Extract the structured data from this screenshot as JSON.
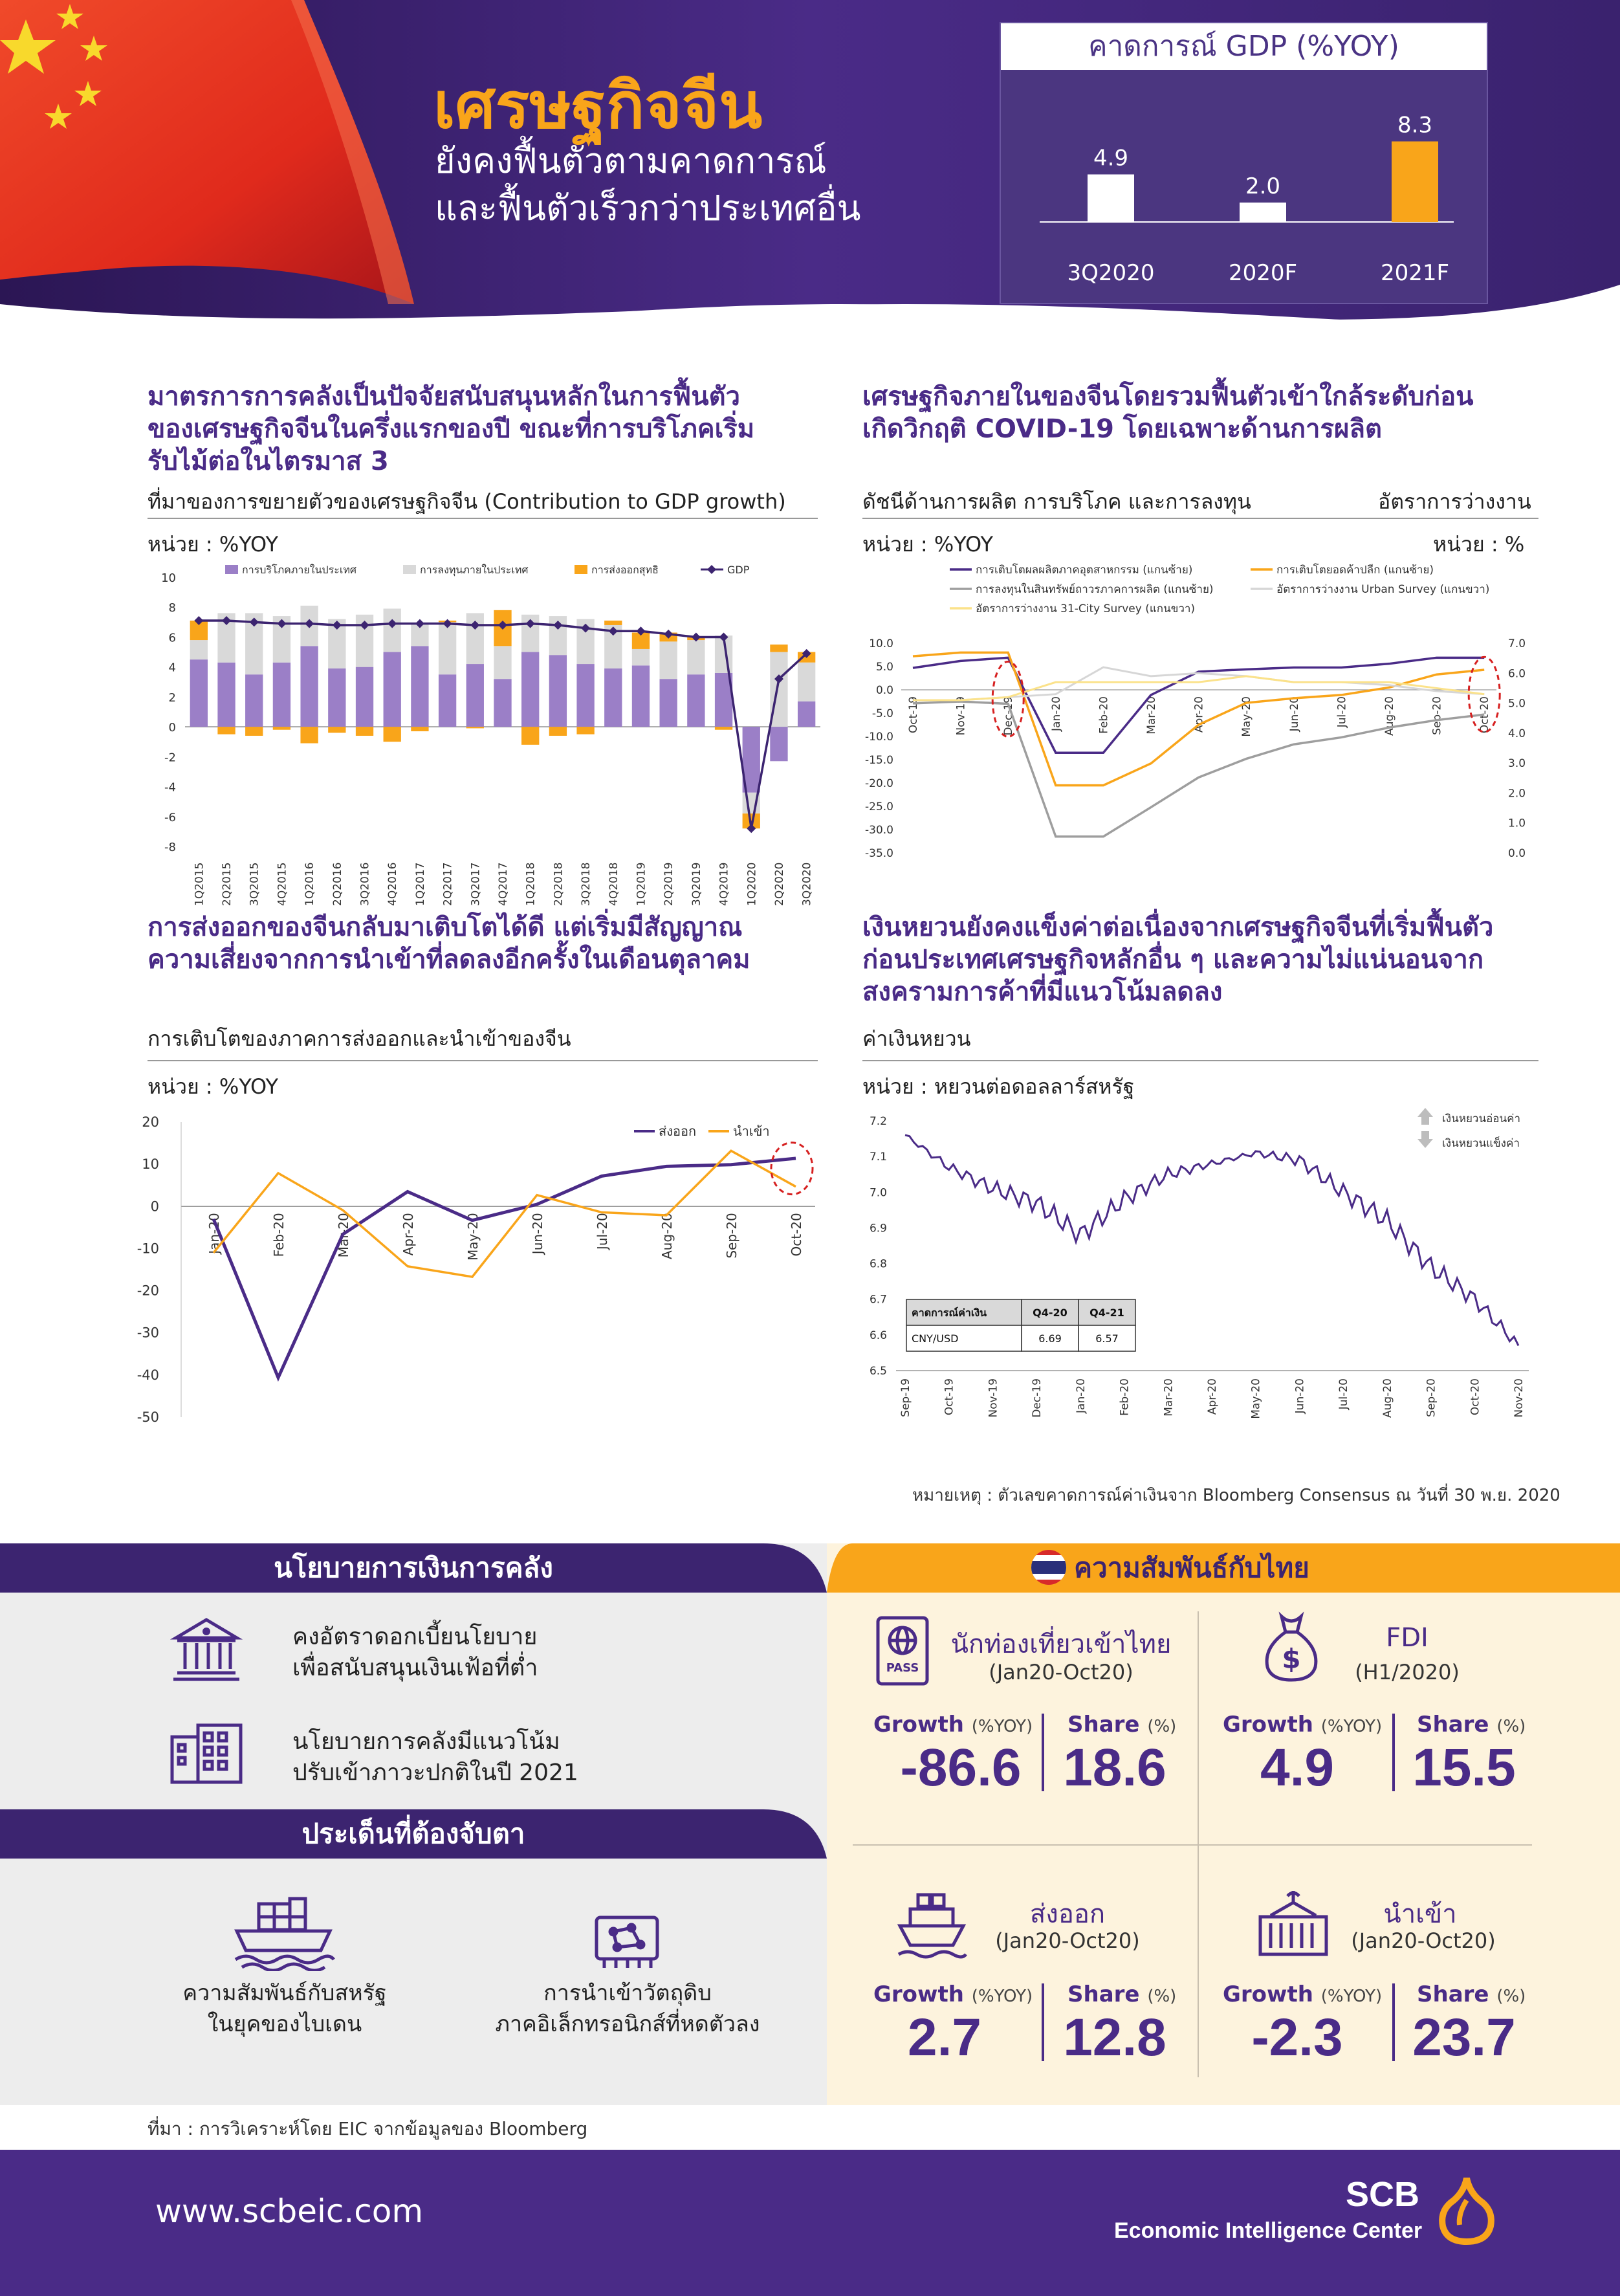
{
  "header": {
    "title": "เศรษฐกิจจีน",
    "subtitle_1": "ยังคงฟื้นตัวตามคาดการณ์",
    "subtitle_2": "และฟื้นตัวเร็วกว่าประเทศอื่น",
    "gdp_box_title": "คาดการณ์ GDP (%YOY)"
  },
  "colors": {
    "purple": "#4a2b87",
    "orange": "#f9a51a",
    "light_gray": "#d9d9d9",
    "lavender": "#9b7fc7",
    "deep_purple": "#3c2470",
    "band_bg": "#ededed",
    "cream": "#fdf3dd"
  },
  "section1": {
    "title_1": "มาตรการการคลังเป็นปัจจัยสนับสนุนหลักในการฟื้นตัว",
    "title_2": "ของเศรษฐกิจจีนในครึ่งแรกของปี ขณะที่การบริโภคเริ่ม",
    "title_3": "รับไม้ต่อในไตรมาส 3",
    "caption": "ที่มาของการขยายตัวของเศรษฐกิจจีน (Contribution to GDP growth)",
    "unit": "หน่วย : %YOY"
  },
  "section2": {
    "title_1": "เศรษฐกิจภายในของจีนโดยรวมฟื้นตัวเข้าใกล้ระดับก่อน",
    "title_2": "เกิดวิกฤติ COVID-19 โดยเฉพาะด้านการผลิต",
    "caption_left": "ดัชนีด้านการผลิต การบริโภค และการลงทุน",
    "caption_right": "อัตราการว่างงาน",
    "unit_left": "หน่วย : %YOY",
    "unit_right": "หน่วย : %"
  },
  "section3": {
    "title_1": "การส่งออกของจีนกลับมาเติบโตได้ดี แต่เริ่มมีสัญญาณ",
    "title_2": "ความเสี่ยงจากการนำเข้าที่ลดลงอีกครั้งในเดือนตุลาคม",
    "caption": "การเติบโตของภาคการส่งออกและนำเข้าของจีน",
    "unit": "หน่วย : %YOY"
  },
  "section4": {
    "title_1": "เงินหยวนยังคงแข็งค่าต่อเนื่องจากเศรษฐกิจจีนที่เริ่มฟื้นตัว",
    "title_2": "ก่อนประเทศเศรษฐกิจหลักอื่น ๆ และความไม่แน่นอนจาก",
    "title_3": "สงครามการค้าที่มีแนวโน้มลดลง",
    "caption": "ค่าเงินหยวน",
    "unit": "หน่วย : หยวนต่อดอลลาร์สหรัฐ",
    "note": "หมายเหตุ : ตัวเลขคาดการณ์ค่าเงินจาก Bloomberg Consensus ณ วันที่ 30 พ.ย. 2020"
  },
  "chart_data": [
    {
      "type": "bar",
      "categories": [
        "3Q2020",
        "2020F",
        "2021F"
      ],
      "values": [
        4.9,
        2.0,
        8.3
      ],
      "title": "คาดการณ์ GDP (%YOY)"
    },
    {
      "type": "bar",
      "categories": [
        "1Q2015",
        "2Q2015",
        "3Q2015",
        "4Q2015",
        "1Q2016",
        "2Q2016",
        "3Q2016",
        "4Q2016",
        "1Q2017",
        "2Q2017",
        "3Q2017",
        "4Q2017",
        "1Q2018",
        "2Q2018",
        "3Q2018",
        "4Q2018",
        "1Q2019",
        "2Q2019",
        "3Q2019",
        "4Q2019",
        "1Q2020",
        "2Q2020",
        "3Q2020"
      ],
      "series": [
        {
          "name": "การบริโภคภายในประเทศ",
          "values": [
            4.5,
            4.3,
            3.5,
            4.3,
            5.4,
            3.9,
            4.0,
            5.0,
            5.4,
            3.5,
            4.2,
            3.2,
            5.0,
            4.8,
            4.2,
            3.9,
            4.1,
            3.2,
            3.5,
            3.6,
            -4.4,
            -2.3,
            1.7
          ]
        },
        {
          "name": "การลงทุนภายในประเทศ",
          "values": [
            1.3,
            3.3,
            4.1,
            3.1,
            2.7,
            3.3,
            3.5,
            2.9,
            1.5,
            3.5,
            3.4,
            2.2,
            2.5,
            2.6,
            3.0,
            2.9,
            1.1,
            2.5,
            2.3,
            2.5,
            -1.4,
            5.0,
            2.6
          ]
        },
        {
          "name": "การส่งออกสุทธิ",
          "values": [
            1.3,
            -0.5,
            -0.6,
            -0.2,
            -1.1,
            -0.4,
            -0.6,
            -1.0,
            -0.3,
            0.1,
            -0.1,
            2.4,
            -1.2,
            -0.6,
            -0.5,
            0.3,
            1.1,
            0.6,
            0.2,
            -0.2,
            -1.0,
            0.5,
            0.7
          ]
        },
        {
          "name": "GDP",
          "values": [
            7.1,
            7.1,
            7.0,
            6.9,
            6.9,
            6.8,
            6.8,
            6.9,
            6.9,
            6.9,
            6.8,
            6.8,
            6.9,
            6.8,
            6.6,
            6.4,
            6.4,
            6.2,
            6.0,
            6.0,
            -6.8,
            3.2,
            4.9
          ]
        }
      ],
      "ylim": [
        -8,
        10
      ]
    },
    {
      "type": "line",
      "categories": [
        "Oct-19",
        "Nov-19",
        "Dec-19",
        "Jan-20",
        "Feb-20",
        "Mar-20",
        "Apr-20",
        "May-20",
        "Jun-20",
        "Jul-20",
        "Aug-20",
        "Sep-20",
        "Oct-20"
      ],
      "series": [
        {
          "name": "การเติบโตผลผลิตภาคอุตสาหกรรม (แกนซ้าย)",
          "values": [
            4.7,
            6.2,
            6.9,
            -13.5,
            -13.5,
            -1.1,
            3.9,
            4.4,
            4.8,
            4.8,
            5.6,
            6.9,
            6.9
          ]
        },
        {
          "name": "การเติบโตยอดค้าปลีก (แกนซ้าย)",
          "values": [
            7.2,
            8.0,
            8.0,
            -20.5,
            -20.5,
            -15.8,
            -7.5,
            -2.8,
            -1.8,
            -1.1,
            0.5,
            3.3,
            4.3
          ]
        },
        {
          "name": "การลงทุนในสินทรัพย์ถาวรภาคการผลิต (แกนซ้าย)",
          "values": [
            -2.9,
            -2.5,
            -3.0,
            -31.5,
            -31.5,
            -25.2,
            -18.8,
            -14.8,
            -11.7,
            -10.2,
            -8.1,
            -6.5,
            -5.3
          ]
        },
        {
          "name": "อัตราการว่างงาน Urban Survey (แกนขวา)",
          "values": [
            5.1,
            5.1,
            5.2,
            5.3,
            6.2,
            5.9,
            6.0,
            5.9,
            5.7,
            5.7,
            5.6,
            5.4,
            5.3
          ]
        },
        {
          "name": "อัตราการว่างงาน 31-City Survey (แกนขวา)",
          "values": [
            5.1,
            5.1,
            5.2,
            5.7,
            5.7,
            5.7,
            5.7,
            5.9,
            5.7,
            5.7,
            5.7,
            5.5,
            5.3
          ]
        }
      ],
      "ylim_left": [
        -35,
        10
      ],
      "ylim_right": [
        0,
        7
      ]
    },
    {
      "type": "line",
      "categories": [
        "Jan-20",
        "Feb-20",
        "Mar-20",
        "Apr-20",
        "May-20",
        "Jun-20",
        "Jul-20",
        "Aug-20",
        "Sep-20",
        "Oct-20"
      ],
      "series": [
        {
          "name": "ส่งออก",
          "values": [
            -3,
            -40.6,
            -6.6,
            3.5,
            -3.3,
            0.5,
            7.2,
            9.5,
            9.9,
            11.4
          ]
        },
        {
          "name": "นำเข้า",
          "values": [
            -11,
            7.9,
            -0.9,
            -14.2,
            -16.7,
            2.7,
            -1.4,
            -2.1,
            13.2,
            4.7
          ]
        }
      ],
      "ylim": [
        -50,
        20
      ]
    },
    {
      "type": "line",
      "categories": [
        "Sep-19",
        "Oct-19",
        "Nov-19",
        "Dec-19",
        "Jan-20",
        "Feb-20",
        "Mar-20",
        "Apr-20",
        "May-20",
        "Jun-20",
        "Jul-20",
        "Aug-20",
        "Sep-20",
        "Oct-20",
        "Nov-20"
      ],
      "values": [
        7.16,
        7.07,
        7.01,
        6.97,
        6.88,
        6.98,
        7.05,
        7.08,
        7.11,
        7.09,
        7.0,
        6.92,
        6.79,
        6.7,
        6.57
      ],
      "ylim": [
        6.5,
        7.2
      ],
      "legend": [
        "เงินหยวนอ่อนค่า",
        "เงินหยวนแข็งค่า"
      ],
      "forecast_table": {
        "header": [
          "คาดการณ์ค่าเงิน",
          "Q4-20",
          "Q4-21"
        ],
        "row": [
          "CNY/USD",
          "6.69",
          "6.57"
        ]
      }
    }
  ],
  "policy": {
    "band_title": "นโยบายการเงินการคลัง",
    "item1_line1": "คงอัตราดอกเบี้ยนโยบาย",
    "item1_line2": "เพื่อสนับสนุนเงินเฟ้อที่ต่ำ",
    "item2_line1": "นโยบายการคลังมีแนวโน้ม",
    "item2_line2": "ปรับเข้าภาวะปกติในปี 2021"
  },
  "watch": {
    "band_title": "ประเด็นที่ต้องจับตา",
    "item1_line1": "ความสัมพันธ์กับสหรัฐ",
    "item1_line2": "ในยุคของไบเดน",
    "item2_line1": "การนำเข้าวัตถุดิบ",
    "item2_line2": "ภาคอิเล็กทรอนิกส์ที่หดตัวลง"
  },
  "thai": {
    "band_title": "ความสัมพันธ์กับไทย",
    "growth_label": "Growth",
    "growth_unit": "(%YOY)",
    "share_label": "Share",
    "share_unit": "(%)",
    "tourist": {
      "title": "นักท่องเที่ยวเข้าไทย",
      "period": "(Jan20-Oct20)",
      "growth": "-86.6",
      "share": "18.6"
    },
    "fdi": {
      "title": "FDI",
      "period": "(H1/2020)",
      "growth": "4.9",
      "share": "15.5"
    },
    "export": {
      "title": "ส่งออก",
      "period": "(Jan20-Oct20)",
      "growth": "2.7",
      "share": "12.8"
    },
    "import": {
      "title": "นำเข้า",
      "period": "(Jan20-Oct20)",
      "growth": "-2.3",
      "share": "23.7"
    }
  },
  "source": "ที่มา : การวิเคราะห์โดย EIC จากข้อมูลของ Bloomberg",
  "footer": {
    "url": "www.scbeic.com",
    "brand": "SCB",
    "brand_sub": "Economic Intelligence Center"
  },
  "icons": [
    "flag-icon",
    "government-building-icon",
    "office-building-icon",
    "cargo-ship-icon",
    "circuit-chip-icon",
    "thai-flag-icon",
    "passport-icon",
    "money-bag-icon",
    "ship-icon",
    "container-crane-icon",
    "scb-logo-icon",
    "up-arrow-icon",
    "down-arrow-icon"
  ]
}
